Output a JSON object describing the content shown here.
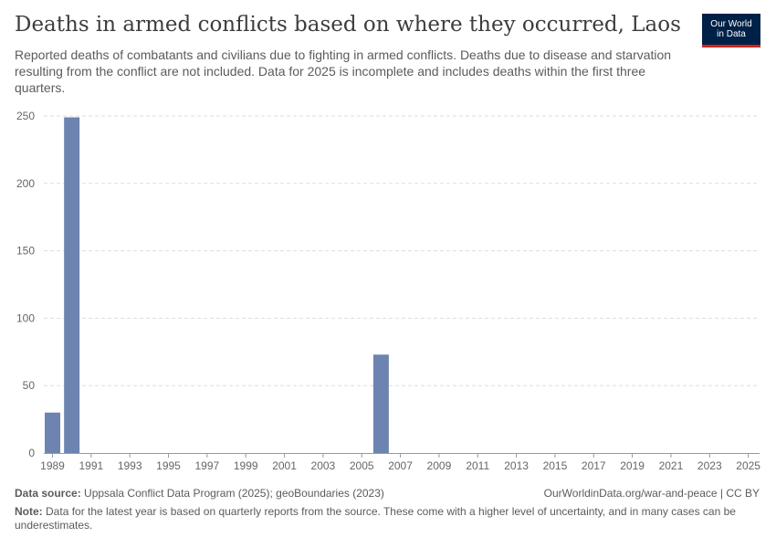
{
  "header": {
    "title": "Deaths in armed conflicts based on where they occurred, Laos",
    "subtitle": "Reported deaths of combatants and civilians due to fighting in armed conflicts. Deaths due to disease and starvation resulting from the conflict are not included. Data for 2025 is incomplete and includes deaths within the first three quarters.",
    "logo_line1": "Our World",
    "logo_line2": "in Data"
  },
  "chart_data": {
    "type": "bar",
    "title": "Deaths in armed conflicts based on where they occurred, Laos",
    "x": [
      1989,
      1990,
      1991,
      1992,
      1993,
      1994,
      1995,
      1996,
      1997,
      1998,
      1999,
      2000,
      2001,
      2002,
      2003,
      2004,
      2005,
      2006,
      2007,
      2008,
      2009,
      2010,
      2011,
      2012,
      2013,
      2014,
      2015,
      2016,
      2017,
      2018,
      2019,
      2020,
      2021,
      2022,
      2023,
      2024,
      2025
    ],
    "values": [
      30,
      249,
      0,
      0,
      0,
      0,
      0,
      0,
      0,
      0,
      0,
      0,
      0,
      0,
      0,
      0,
      0,
      73,
      0,
      0,
      0,
      0,
      0,
      0,
      0,
      0,
      0,
      0,
      0,
      0,
      0,
      0,
      0,
      0,
      0,
      0,
      0
    ],
    "x_tick_labels": [
      "1989",
      "1991",
      "1993",
      "1995",
      "1997",
      "1999",
      "2001",
      "2003",
      "2005",
      "2007",
      "2009",
      "2011",
      "2013",
      "2015",
      "2017",
      "2019",
      "2021",
      "2023",
      "2025"
    ],
    "y_ticks": [
      0,
      50,
      100,
      150,
      200,
      250
    ],
    "ylim": [
      0,
      250
    ],
    "grid": true,
    "bar_color": "#6d84b0"
  },
  "footer": {
    "source_label": "Data source:",
    "source_text": "Uppsala Conflict Data Program (2025); geoBoundaries (2023)",
    "url": "OurWorldinData.org/war-and-peace | CC BY",
    "note_label": "Note:",
    "note_text": "Data for the latest year is based on quarterly reports from the source. These come with a higher level of uncertainty, and in many cases can be underestimates."
  }
}
